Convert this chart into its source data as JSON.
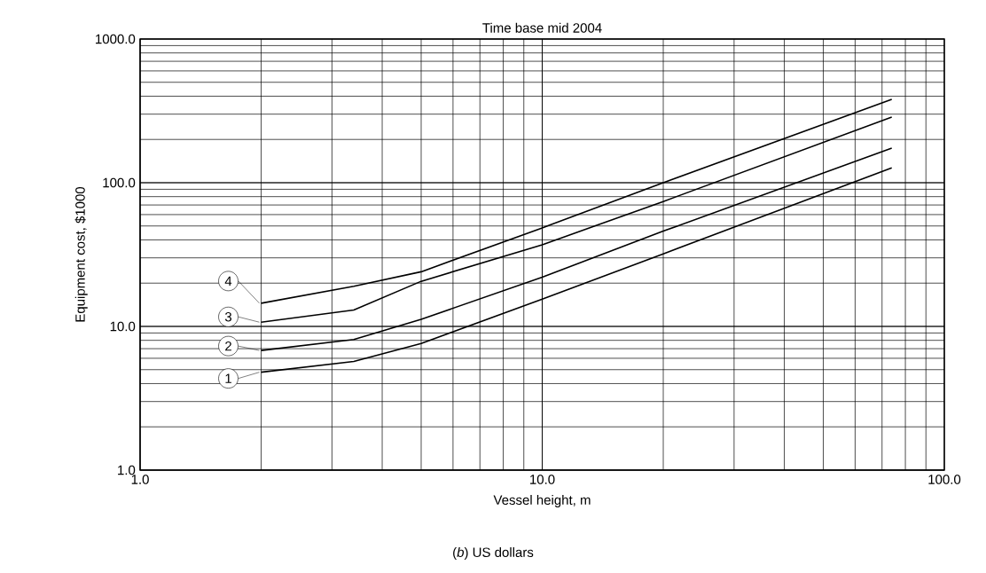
{
  "chart_data": {
    "type": "line",
    "title": "Time base mid 2004",
    "xlabel": "Vessel height, m",
    "ylabel": "Equipment cost, $1000",
    "annotations": [
      "(*b*) US dollars"
    ],
    "log": "xy",
    "grid": true,
    "legend": "left",
    "marker": "none",
    "line_style": "solid",
    "xlim": [
      1,
      100
    ],
    "ylim": [
      1,
      1000
    ],
    "xticks": [
      {
        "value": 1,
        "label": "1.0"
      },
      {
        "value": 10,
        "label": "10.0"
      },
      {
        "value": 100,
        "label": "100.0"
      }
    ],
    "yticks": [
      {
        "value": 1,
        "label": "1.0"
      },
      {
        "value": 10,
        "label": "10.0"
      },
      {
        "value": 100,
        "label": "100.0"
      },
      {
        "value": 1000,
        "label": "1000.0"
      }
    ],
    "x": [
      2,
      3.4,
      5,
      10,
      20,
      74
    ],
    "series": [
      {
        "name": "1",
        "color": "#000000",
        "values": [
          4.8,
          5.7,
          7.6,
          15.5,
          32,
          127
        ]
      },
      {
        "name": "2",
        "color": "#000000",
        "values": [
          6.8,
          8.1,
          11.2,
          22,
          46,
          174
        ]
      },
      {
        "name": "3",
        "color": "#000000",
        "values": [
          10.7,
          13,
          20.6,
          37,
          74,
          286
        ]
      },
      {
        "name": "4",
        "color": "#000000",
        "values": [
          14.5,
          19,
          24,
          48.5,
          100,
          381
        ]
      }
    ]
  }
}
